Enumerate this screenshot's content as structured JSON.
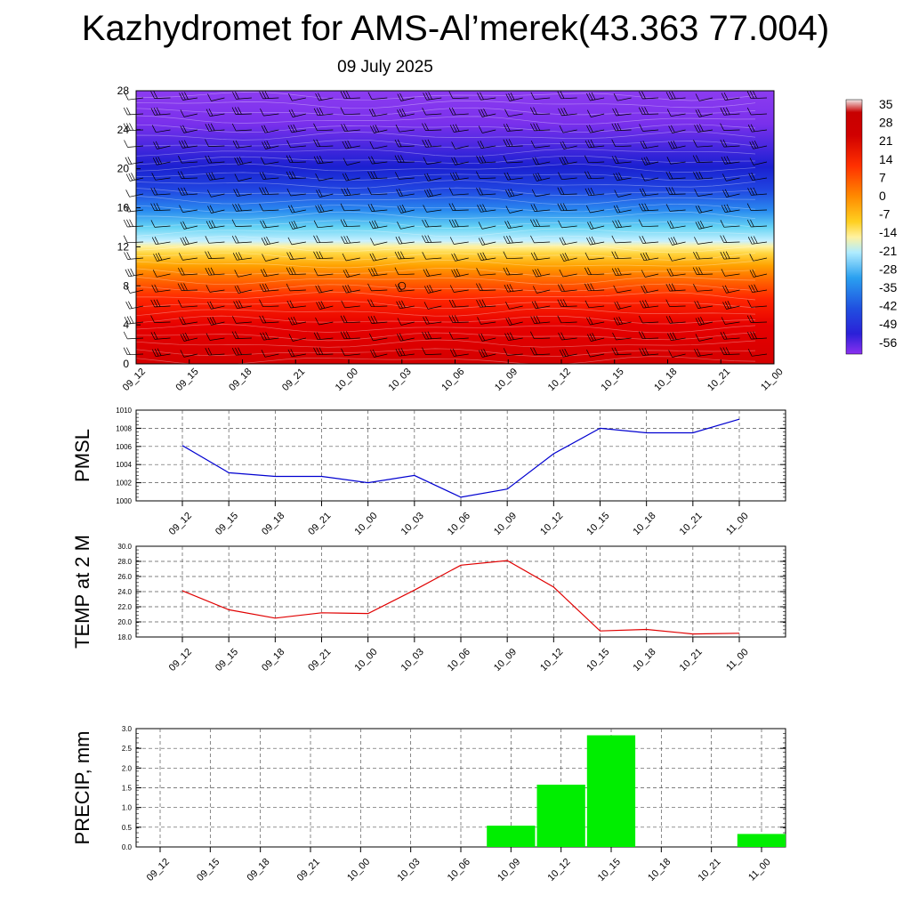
{
  "page": {
    "title": "Kazhydromet for AMS-Al’merek(43.363 77.004)",
    "subtitle": "09 July 2025"
  },
  "colors": {
    "pmsl_line": "#0000d0",
    "temp_line": "#e00000",
    "precip_bar": "#00ee00"
  },
  "colorbar": {
    "labels": [
      "35",
      "28",
      "21",
      "14",
      "7",
      "0",
      "-7",
      "-14",
      "-21",
      "-28",
      "-35",
      "-42",
      "-49",
      "-56"
    ],
    "stops": [
      "#e8e8e8",
      "#c00000",
      "#dd0000",
      "#ff2000",
      "#ff6a00",
      "#ffa000",
      "#ffd020",
      "#fff080",
      "#b8f0ff",
      "#40c8f0",
      "#2080f0",
      "#2040e0",
      "#2020d8",
      "#7030e8"
    ]
  },
  "chart_data": [
    {
      "type": "heatmap",
      "name": "cross-section",
      "ylim": [
        0,
        28
      ],
      "yticks": [
        0,
        4,
        8,
        12,
        16,
        20,
        24,
        28
      ],
      "categories": [
        "09_12",
        "09_15",
        "09_18",
        "09_21",
        "10_00",
        "10_03",
        "10_06",
        "10_09",
        "10_12",
        "10_15",
        "10_18",
        "10_21",
        "11_00"
      ],
      "levels": [
        0,
        4,
        8,
        12,
        16,
        20,
        24,
        28
      ],
      "values_approx": [
        [
          30,
          30,
          30,
          30,
          30,
          30,
          30,
          30,
          30,
          30,
          30,
          30,
          30
        ],
        [
          25,
          25,
          25,
          25,
          25,
          25,
          25,
          25,
          25,
          25,
          25,
          25,
          25
        ],
        [
          14,
          14,
          14,
          14,
          14,
          14,
          14,
          14,
          14,
          14,
          14,
          14,
          14
        ],
        [
          -5,
          -5,
          -5,
          -5,
          -5,
          -5,
          -5,
          -5,
          -5,
          -5,
          -5,
          -5,
          -5
        ],
        [
          -30,
          -30,
          -30,
          -30,
          -30,
          -30,
          -30,
          -30,
          -30,
          -30,
          -30,
          -30,
          -30
        ],
        [
          -52,
          -52,
          -52,
          -52,
          -52,
          -52,
          -52,
          -52,
          -52,
          -52,
          -52,
          -52,
          -52
        ],
        [
          -60,
          -60,
          -60,
          -60,
          -60,
          -60,
          -60,
          -60,
          -60,
          -60,
          -60,
          -60,
          -60
        ],
        [
          -60,
          -60,
          -60,
          -60,
          -60,
          -60,
          -60,
          -60,
          -60,
          -60,
          -60,
          -60,
          -60
        ]
      ]
    },
    {
      "type": "line",
      "name": "pmsl",
      "ylabel": "PMSL",
      "ylim": [
        1000,
        1010
      ],
      "yticks": [
        "1000",
        "1002",
        "1004",
        "1006",
        "1008",
        "1010"
      ],
      "categories": [
        "09_12",
        "09_15",
        "09_18",
        "09_21",
        "10_00",
        "10_03",
        "10_06",
        "10_09",
        "10_12",
        "10_15",
        "10_18",
        "10_21",
        "11_00"
      ],
      "values": [
        1006.1,
        1003.1,
        1002.7,
        1002.7,
        1002.0,
        1002.8,
        1000.4,
        1001.3,
        1005.2,
        1008.0,
        1007.5,
        1007.5,
        1009.0
      ],
      "grid": true
    },
    {
      "type": "line",
      "name": "temp",
      "ylabel": "TEMP at 2 M",
      "ylim": [
        18,
        30
      ],
      "yticks": [
        "18.0",
        "20.0",
        "22.0",
        "24.0",
        "26.0",
        "28.0",
        "30.0"
      ],
      "categories": [
        "09_12",
        "09_15",
        "09_18",
        "09_21",
        "10_00",
        "10_03",
        "10_06",
        "10_09",
        "10_12",
        "10_15",
        "10_18",
        "10_21",
        "11_00"
      ],
      "values": [
        24.1,
        21.6,
        20.5,
        21.2,
        21.1,
        24.2,
        27.5,
        28.1,
        24.6,
        18.8,
        19.0,
        18.4,
        18.5
      ],
      "grid": true
    },
    {
      "type": "bar",
      "name": "precip",
      "ylabel": "PRECIP, mm",
      "ylim": [
        0,
        3
      ],
      "yticks": [
        "0.0",
        "0.5",
        "1.0",
        "1.5",
        "2.0",
        "2.5",
        "3.0"
      ],
      "categories": [
        "09_12",
        "09_15",
        "09_18",
        "09_21",
        "10_00",
        "10_03",
        "10_06",
        "10_09",
        "10_12",
        "10_15",
        "10_18",
        "10_21",
        "11_00"
      ],
      "values": [
        0,
        0,
        0,
        0,
        0,
        0,
        0,
        0.54,
        1.58,
        2.83,
        0,
        0,
        0.33
      ],
      "grid": true
    }
  ]
}
